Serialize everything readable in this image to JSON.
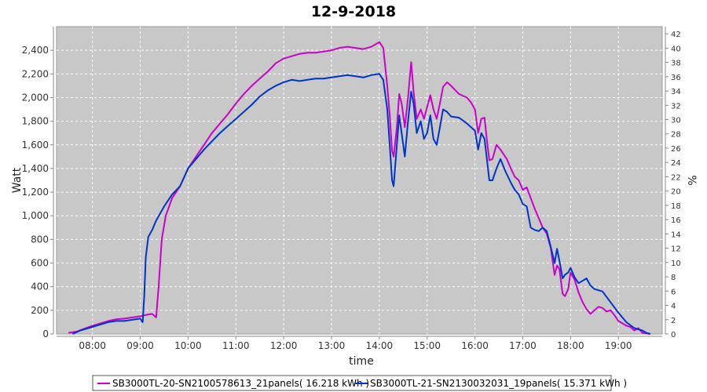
{
  "chart_data": {
    "type": "line",
    "title": "12-9-2018",
    "xlabel": "time",
    "ylabel": "Watt",
    "y2label": "%",
    "xlim": [
      "07:15",
      "19:55"
    ],
    "ylim": [
      0,
      2600
    ],
    "y2lim": [
      0,
      43
    ],
    "x_ticks": [
      "08:00",
      "09:00",
      "10:00",
      "11:00",
      "12:00",
      "13:00",
      "14:00",
      "15:00",
      "16:00",
      "17:00",
      "18:00",
      "19:00"
    ],
    "y_ticks": [
      "0",
      "200",
      "400",
      "600",
      "800",
      "1,000",
      "1,200",
      "1,400",
      "1,600",
      "1,800",
      "2,000",
      "2,200",
      "2,400"
    ],
    "y2_ticks": [
      "0",
      "2",
      "4",
      "6",
      "8",
      "10",
      "12",
      "14",
      "16",
      "18",
      "20",
      "22",
      "24",
      "26",
      "28",
      "30",
      "32",
      "34",
      "36",
      "38",
      "40",
      "42"
    ],
    "grid": true,
    "legend_position": "bottom",
    "plot_background": "#c8c8c8",
    "series": [
      {
        "name": "SB3000TL-20-SN2100578613_21panels( 16.218 kWh )",
        "color": "#cc00cc",
        "points": [
          [
            "07:30",
            10
          ],
          [
            "07:40",
            20
          ],
          [
            "07:50",
            45
          ],
          [
            "08:00",
            70
          ],
          [
            "08:10",
            90
          ],
          [
            "08:20",
            110
          ],
          [
            "08:30",
            125
          ],
          [
            "08:40",
            130
          ],
          [
            "08:50",
            140
          ],
          [
            "09:00",
            150
          ],
          [
            "09:10",
            165
          ],
          [
            "09:15",
            170
          ],
          [
            "09:20",
            140
          ],
          [
            "09:23",
            400
          ],
          [
            "09:27",
            800
          ],
          [
            "09:32",
            1000
          ],
          [
            "09:40",
            1150
          ],
          [
            "09:50",
            1250
          ],
          [
            "10:00",
            1400
          ],
          [
            "10:10",
            1500
          ],
          [
            "10:20",
            1600
          ],
          [
            "10:30",
            1700
          ],
          [
            "10:40",
            1780
          ],
          [
            "10:50",
            1860
          ],
          [
            "11:00",
            1950
          ],
          [
            "11:10",
            2030
          ],
          [
            "11:20",
            2100
          ],
          [
            "11:30",
            2160
          ],
          [
            "11:40",
            2220
          ],
          [
            "11:50",
            2290
          ],
          [
            "12:00",
            2330
          ],
          [
            "12:10",
            2350
          ],
          [
            "12:20",
            2370
          ],
          [
            "12:30",
            2380
          ],
          [
            "12:40",
            2380
          ],
          [
            "12:50",
            2390
          ],
          [
            "13:00",
            2400
          ],
          [
            "13:10",
            2420
          ],
          [
            "13:20",
            2430
          ],
          [
            "13:30",
            2420
          ],
          [
            "13:40",
            2410
          ],
          [
            "13:50",
            2430
          ],
          [
            "14:00",
            2470
          ],
          [
            "14:05",
            2420
          ],
          [
            "14:10",
            2100
          ],
          [
            "14:13",
            1850
          ],
          [
            "14:16",
            1550
          ],
          [
            "14:18",
            1500
          ],
          [
            "14:22",
            1750
          ],
          [
            "14:25",
            2030
          ],
          [
            "14:28",
            1950
          ],
          [
            "14:32",
            1750
          ],
          [
            "14:36",
            2000
          ],
          [
            "14:40",
            2300
          ],
          [
            "14:43",
            2050
          ],
          [
            "14:47",
            1820
          ],
          [
            "14:52",
            1900
          ],
          [
            "14:56",
            1820
          ],
          [
            "15:00",
            1920
          ],
          [
            "15:04",
            2020
          ],
          [
            "15:08",
            1900
          ],
          [
            "15:12",
            1820
          ],
          [
            "15:16",
            1950
          ],
          [
            "15:20",
            2090
          ],
          [
            "15:25",
            2130
          ],
          [
            "15:30",
            2100
          ],
          [
            "15:40",
            2030
          ],
          [
            "15:50",
            2000
          ],
          [
            "15:55",
            1960
          ],
          [
            "16:00",
            1900
          ],
          [
            "16:04",
            1700
          ],
          [
            "16:08",
            1820
          ],
          [
            "16:12",
            1830
          ],
          [
            "16:15",
            1640
          ],
          [
            "16:18",
            1470
          ],
          [
            "16:22",
            1480
          ],
          [
            "16:27",
            1600
          ],
          [
            "16:32",
            1560
          ],
          [
            "16:40",
            1480
          ],
          [
            "16:45",
            1400
          ],
          [
            "16:50",
            1330
          ],
          [
            "16:55",
            1300
          ],
          [
            "17:00",
            1220
          ],
          [
            "17:05",
            1240
          ],
          [
            "17:10",
            1150
          ],
          [
            "17:15",
            1060
          ],
          [
            "17:20",
            980
          ],
          [
            "17:25",
            900
          ],
          [
            "17:30",
            850
          ],
          [
            "17:35",
            730
          ],
          [
            "17:40",
            500
          ],
          [
            "17:43",
            580
          ],
          [
            "17:46",
            550
          ],
          [
            "17:50",
            340
          ],
          [
            "17:53",
            320
          ],
          [
            "17:57",
            380
          ],
          [
            "18:00",
            520
          ],
          [
            "18:05",
            460
          ],
          [
            "18:10",
            350
          ],
          [
            "18:15",
            270
          ],
          [
            "18:20",
            210
          ],
          [
            "18:25",
            170
          ],
          [
            "18:30",
            200
          ],
          [
            "18:35",
            230
          ],
          [
            "18:40",
            220
          ],
          [
            "18:45",
            190
          ],
          [
            "18:50",
            200
          ],
          [
            "18:55",
            160
          ],
          [
            "19:00",
            110
          ],
          [
            "19:05",
            90
          ],
          [
            "19:10",
            70
          ],
          [
            "19:15",
            60
          ],
          [
            "19:20",
            30
          ],
          [
            "19:25",
            50
          ],
          [
            "19:30",
            10
          ],
          [
            "19:35",
            5
          ],
          [
            "19:40",
            0
          ]
        ]
      },
      {
        "name": "SB3000TL-21-SN2130032031_19panels( 15.371 kWh )",
        "color": "#0033cc",
        "points": [
          [
            "07:35",
            0
          ],
          [
            "07:45",
            30
          ],
          [
            "07:55",
            50
          ],
          [
            "08:00",
            60
          ],
          [
            "08:10",
            80
          ],
          [
            "08:20",
            100
          ],
          [
            "08:30",
            110
          ],
          [
            "08:40",
            110
          ],
          [
            "08:50",
            120
          ],
          [
            "09:00",
            130
          ],
          [
            "09:03",
            100
          ],
          [
            "09:05",
            320
          ],
          [
            "09:07",
            650
          ],
          [
            "09:10",
            820
          ],
          [
            "09:15",
            880
          ],
          [
            "09:20",
            960
          ],
          [
            "09:30",
            1080
          ],
          [
            "09:40",
            1180
          ],
          [
            "09:50",
            1250
          ],
          [
            "10:00",
            1400
          ],
          [
            "10:10",
            1480
          ],
          [
            "10:20",
            1560
          ],
          [
            "10:30",
            1630
          ],
          [
            "10:40",
            1700
          ],
          [
            "10:50",
            1760
          ],
          [
            "11:00",
            1820
          ],
          [
            "11:10",
            1880
          ],
          [
            "11:20",
            1940
          ],
          [
            "11:30",
            2010
          ],
          [
            "11:40",
            2060
          ],
          [
            "11:50",
            2100
          ],
          [
            "12:00",
            2130
          ],
          [
            "12:10",
            2150
          ],
          [
            "12:20",
            2140
          ],
          [
            "12:30",
            2150
          ],
          [
            "12:40",
            2160
          ],
          [
            "12:50",
            2160
          ],
          [
            "13:00",
            2170
          ],
          [
            "13:10",
            2180
          ],
          [
            "13:20",
            2190
          ],
          [
            "13:30",
            2180
          ],
          [
            "13:40",
            2170
          ],
          [
            "13:50",
            2190
          ],
          [
            "14:00",
            2200
          ],
          [
            "14:05",
            2150
          ],
          [
            "14:10",
            1900
          ],
          [
            "14:13",
            1600
          ],
          [
            "14:16",
            1300
          ],
          [
            "14:18",
            1250
          ],
          [
            "14:22",
            1600
          ],
          [
            "14:25",
            1850
          ],
          [
            "14:28",
            1700
          ],
          [
            "14:32",
            1500
          ],
          [
            "14:36",
            1800
          ],
          [
            "14:40",
            2050
          ],
          [
            "14:43",
            1950
          ],
          [
            "14:47",
            1700
          ],
          [
            "14:52",
            1800
          ],
          [
            "14:56",
            1650
          ],
          [
            "15:00",
            1700
          ],
          [
            "15:04",
            1850
          ],
          [
            "15:08",
            1650
          ],
          [
            "15:12",
            1600
          ],
          [
            "15:16",
            1750
          ],
          [
            "15:20",
            1900
          ],
          [
            "15:25",
            1880
          ],
          [
            "15:30",
            1840
          ],
          [
            "15:40",
            1830
          ],
          [
            "15:50",
            1780
          ],
          [
            "15:55",
            1750
          ],
          [
            "16:00",
            1720
          ],
          [
            "16:04",
            1560
          ],
          [
            "16:08",
            1700
          ],
          [
            "16:12",
            1650
          ],
          [
            "16:15",
            1480
          ],
          [
            "16:18",
            1300
          ],
          [
            "16:22",
            1300
          ],
          [
            "16:27",
            1400
          ],
          [
            "16:32",
            1480
          ],
          [
            "16:38",
            1380
          ],
          [
            "16:45",
            1280
          ],
          [
            "16:50",
            1220
          ],
          [
            "16:55",
            1180
          ],
          [
            "17:00",
            1100
          ],
          [
            "17:05",
            1080
          ],
          [
            "17:10",
            900
          ],
          [
            "17:15",
            880
          ],
          [
            "17:20",
            870
          ],
          [
            "17:25",
            900
          ],
          [
            "17:30",
            870
          ],
          [
            "17:35",
            740
          ],
          [
            "17:40",
            600
          ],
          [
            "17:43",
            720
          ],
          [
            "17:46",
            620
          ],
          [
            "17:50",
            470
          ],
          [
            "17:53",
            500
          ],
          [
            "17:57",
            520
          ],
          [
            "18:00",
            560
          ],
          [
            "18:05",
            480
          ],
          [
            "18:10",
            430
          ],
          [
            "18:15",
            450
          ],
          [
            "18:20",
            470
          ],
          [
            "18:25",
            410
          ],
          [
            "18:30",
            380
          ],
          [
            "18:40",
            360
          ],
          [
            "18:50",
            270
          ],
          [
            "19:00",
            180
          ],
          [
            "19:10",
            100
          ],
          [
            "19:20",
            50
          ],
          [
            "19:25",
            40
          ],
          [
            "19:30",
            30
          ],
          [
            "19:35",
            10
          ],
          [
            "19:40",
            0
          ]
        ]
      }
    ]
  }
}
